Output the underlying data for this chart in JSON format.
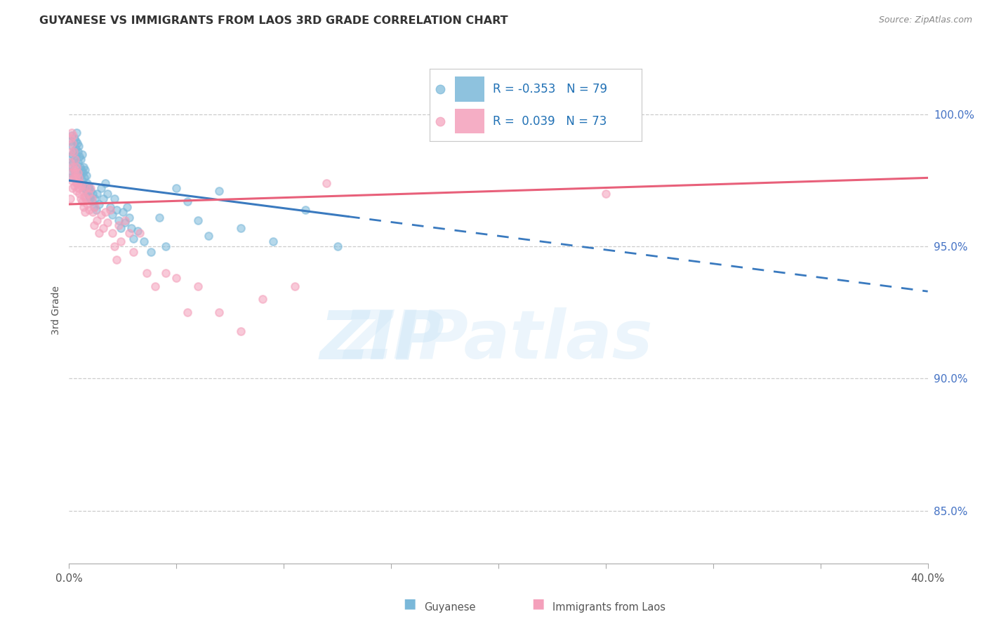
{
  "title": "GUYANESE VS IMMIGRANTS FROM LAOS 3RD GRADE CORRELATION CHART",
  "source": "Source: ZipAtlas.com",
  "ylabel": "3rd Grade",
  "x_min": 0.0,
  "x_max": 40.0,
  "y_min": 83.0,
  "y_max": 102.2,
  "y_ticks": [
    85.0,
    90.0,
    95.0,
    100.0
  ],
  "blue_r": -0.353,
  "blue_n": 79,
  "pink_r": 0.039,
  "pink_n": 73,
  "blue_scatter_color": "#7ab8d9",
  "pink_scatter_color": "#f4a0bb",
  "blue_line_color": "#3a7abf",
  "pink_line_color": "#e8607a",
  "scatter_alpha": 0.55,
  "scatter_size": 60,
  "blue_line_y0": 97.5,
  "blue_line_y40": 93.3,
  "pink_line_y0": 96.6,
  "pink_line_y40": 97.6,
  "blue_dash_start_x": 13.0,
  "blue_x": [
    0.05,
    0.08,
    0.1,
    0.12,
    0.14,
    0.16,
    0.18,
    0.2,
    0.22,
    0.25,
    0.28,
    0.3,
    0.32,
    0.35,
    0.38,
    0.4,
    0.42,
    0.45,
    0.48,
    0.5,
    0.52,
    0.55,
    0.58,
    0.6,
    0.62,
    0.65,
    0.68,
    0.7,
    0.72,
    0.75,
    0.78,
    0.8,
    0.82,
    0.85,
    0.88,
    0.9,
    0.92,
    0.95,
    0.98,
    1.0,
    1.05,
    1.1,
    1.15,
    1.2,
    1.25,
    1.3,
    1.4,
    1.5,
    1.6,
    1.7,
    1.8,
    1.9,
    2.0,
    2.1,
    2.2,
    2.3,
    2.4,
    2.5,
    2.6,
    2.7,
    2.8,
    2.9,
    3.0,
    3.2,
    3.5,
    3.8,
    4.2,
    4.5,
    5.0,
    5.5,
    6.0,
    6.5,
    7.0,
    8.0,
    9.5,
    11.0,
    12.5,
    0.06,
    0.09
  ],
  "blue_y": [
    97.6,
    98.4,
    99.0,
    99.2,
    98.8,
    98.5,
    98.2,
    97.9,
    98.6,
    99.1,
    98.3,
    99.0,
    98.7,
    99.3,
    98.9,
    98.6,
    98.2,
    98.8,
    98.4,
    98.0,
    97.7,
    98.3,
    97.9,
    98.5,
    97.5,
    97.8,
    98.0,
    97.2,
    97.6,
    97.9,
    97.3,
    97.7,
    97.1,
    97.4,
    97.0,
    97.3,
    96.9,
    97.2,
    96.8,
    97.1,
    96.7,
    97.0,
    96.5,
    96.8,
    96.4,
    97.0,
    96.6,
    97.2,
    96.8,
    97.4,
    97.0,
    96.5,
    96.2,
    96.8,
    96.4,
    96.0,
    95.7,
    96.3,
    95.9,
    96.5,
    96.1,
    95.7,
    95.3,
    95.6,
    95.2,
    94.8,
    96.1,
    95.0,
    97.2,
    96.7,
    96.0,
    95.4,
    97.1,
    95.7,
    95.2,
    96.4,
    95.0,
    97.8,
    98.1
  ],
  "pink_x": [
    0.04,
    0.07,
    0.1,
    0.13,
    0.16,
    0.19,
    0.22,
    0.25,
    0.28,
    0.31,
    0.34,
    0.37,
    0.4,
    0.43,
    0.46,
    0.49,
    0.52,
    0.55,
    0.58,
    0.61,
    0.64,
    0.67,
    0.7,
    0.73,
    0.76,
    0.8,
    0.85,
    0.9,
    0.95,
    1.0,
    1.05,
    1.1,
    1.15,
    1.2,
    1.3,
    1.4,
    1.5,
    1.6,
    1.7,
    1.8,
    1.9,
    2.0,
    2.1,
    2.2,
    2.3,
    2.4,
    2.6,
    2.8,
    3.0,
    3.3,
    3.6,
    4.0,
    4.5,
    5.0,
    5.5,
    6.0,
    7.0,
    8.0,
    9.0,
    10.5,
    12.0,
    0.06,
    0.09,
    0.12,
    0.15,
    0.18,
    0.21,
    0.24,
    0.27,
    0.3,
    0.33,
    0.36,
    25.0
  ],
  "pink_y": [
    96.8,
    98.6,
    99.1,
    99.3,
    98.9,
    99.2,
    98.6,
    97.9,
    98.3,
    97.6,
    98.0,
    97.4,
    97.8,
    97.2,
    97.6,
    97.0,
    97.4,
    96.8,
    97.3,
    96.7,
    97.1,
    96.5,
    96.9,
    96.3,
    96.8,
    97.2,
    96.6,
    97.0,
    96.4,
    97.2,
    96.8,
    96.3,
    95.8,
    96.5,
    96.0,
    95.5,
    96.2,
    95.7,
    96.3,
    95.9,
    96.4,
    95.5,
    95.0,
    94.5,
    95.8,
    95.2,
    96.0,
    95.5,
    94.8,
    95.5,
    94.0,
    93.5,
    94.0,
    93.8,
    92.5,
    93.5,
    92.5,
    91.8,
    93.0,
    93.5,
    97.4,
    98.2,
    97.8,
    97.5,
    97.2,
    98.0,
    97.6,
    97.3,
    97.8,
    97.5,
    97.1,
    97.4,
    97.0
  ]
}
